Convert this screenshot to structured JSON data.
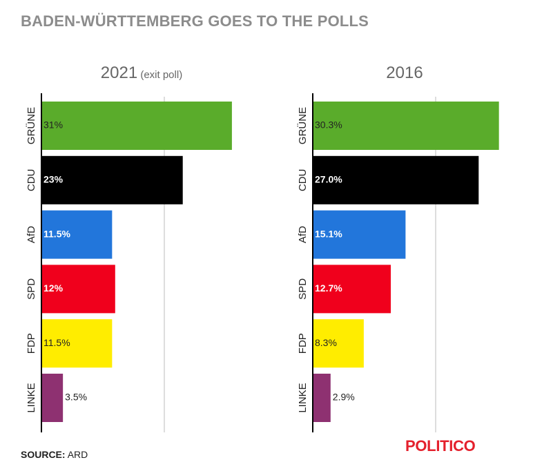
{
  "title": "BADEN-WÜRTTEMBERG GOES TO THE POLLS",
  "source_label": "SOURCE:",
  "source_value": "ARD",
  "logo_text": "POLITICO",
  "colors": {
    "GRÜNE": "#5aac2b",
    "CDU": "#000000",
    "AfD": "#2276db",
    "SPD": "#f0001c",
    "FDP": "#ffed00",
    "LINKE": "#8e3171",
    "gridline": "#bbbbbb",
    "axis": "#000000"
  },
  "chart_data": [
    {
      "type": "bar",
      "orientation": "horizontal",
      "title": "2021",
      "subtitle": "(exit poll)",
      "categories": [
        "GRÜNE",
        "CDU",
        "AfD",
        "SPD",
        "FDP",
        "LINKE"
      ],
      "values": [
        31,
        23,
        11.5,
        12,
        11.5,
        3.5
      ],
      "value_labels": [
        "31%",
        "23%",
        "11.5%",
        "12%",
        "11.5%",
        "3.5%"
      ],
      "xlim": [
        0,
        34
      ],
      "gridlines": [
        20
      ]
    },
    {
      "type": "bar",
      "orientation": "horizontal",
      "title": "2016",
      "subtitle": "",
      "categories": [
        "GRÜNE",
        "CDU",
        "AfD",
        "SPD",
        "FDP",
        "LINKE"
      ],
      "values": [
        30.3,
        27.0,
        15.1,
        12.7,
        8.3,
        2.9
      ],
      "value_labels": [
        "30.3%",
        "27.0%",
        "15.1%",
        "12.7%",
        "8.3%",
        "2.9%"
      ],
      "xlim": [
        0,
        34
      ],
      "gridlines": [
        20
      ]
    }
  ]
}
